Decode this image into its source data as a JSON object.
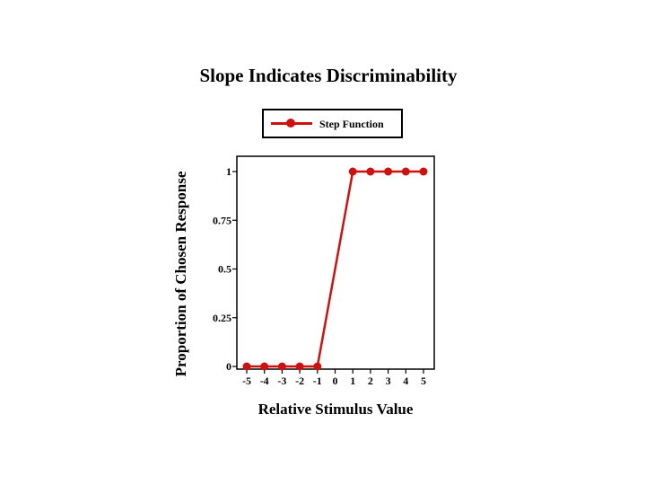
{
  "chart_data": {
    "type": "line",
    "title": "Slope Indicates Discriminability",
    "xlabel": "Relative Stimulus Value",
    "ylabel": "Proportion of Chosen Response",
    "x_ticks": [
      "-5",
      "-4",
      "-3",
      "-2",
      "-1",
      "0",
      "1",
      "2",
      "3",
      "4",
      "5"
    ],
    "y_ticks": [
      "0",
      "0.25",
      "0.5",
      "0.75",
      "1"
    ],
    "xlim": [
      -5,
      5
    ],
    "ylim": [
      0,
      1
    ],
    "grid": false,
    "legend_position": "top-center",
    "series": [
      {
        "name": "Step Function",
        "color": "#cc1111",
        "points": [
          {
            "x": -5,
            "y": 0
          },
          {
            "x": -4,
            "y": 0
          },
          {
            "x": -3,
            "y": 0
          },
          {
            "x": -2,
            "y": 0
          },
          {
            "x": -1,
            "y": 0
          },
          {
            "x": 1,
            "y": 1
          },
          {
            "x": 2,
            "y": 1
          },
          {
            "x": 3,
            "y": 1
          },
          {
            "x": 4,
            "y": 1
          },
          {
            "x": 5,
            "y": 1
          }
        ]
      }
    ]
  }
}
